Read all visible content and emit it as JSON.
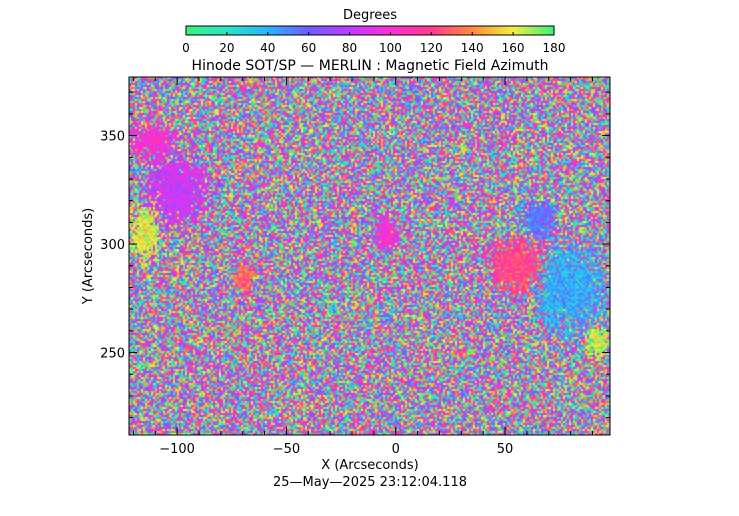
{
  "chart_data": {
    "type": "heatmap",
    "title": "Hinode SOT/SP — MERLIN : Magnetic Field Azimuth",
    "xlabel": "X (Arcseconds)",
    "ylabel": "Y (Arcseconds)",
    "xlim": [
      -122,
      98
    ],
    "ylim": [
      212,
      377
    ],
    "x_ticks": [
      -100,
      -50,
      0,
      50
    ],
    "y_ticks": [
      250,
      300,
      350
    ],
    "x_tick_labels": [
      "−100",
      "−50",
      "0",
      "50"
    ],
    "y_tick_labels": [
      "250",
      "300",
      "350"
    ],
    "colorbar": {
      "label": "Degrees",
      "range": [
        0,
        180
      ],
      "ticks": [
        0,
        20,
        40,
        60,
        80,
        100,
        120,
        140,
        160,
        180
      ],
      "tick_labels": [
        "0",
        "20",
        "40",
        "60",
        "80",
        "100",
        "120",
        "140",
        "160",
        "180"
      ],
      "colors": [
        "#3CF07A",
        "#28E6C8",
        "#2AB4FF",
        "#6E5CFF",
        "#C03CFF",
        "#FF2ED6",
        "#FF3C8C",
        "#FF8A3C",
        "#F0F040",
        "#3CF07A"
      ]
    },
    "structured_regions": [
      {
        "x": -112,
        "y": 348,
        "rx": 12,
        "ry": 10,
        "azimuth": 100
      },
      {
        "x": -100,
        "y": 325,
        "rx": 16,
        "ry": 18,
        "azimuth": 85
      },
      {
        "x": -115,
        "y": 305,
        "rx": 8,
        "ry": 14,
        "azimuth": 160
      },
      {
        "x": -70,
        "y": 285,
        "rx": 6,
        "ry": 8,
        "azimuth": 130
      },
      {
        "x": -5,
        "y": 305,
        "rx": 6,
        "ry": 10,
        "azimuth": 100
      },
      {
        "x": 55,
        "y": 290,
        "rx": 15,
        "ry": 15,
        "azimuth": 120
      },
      {
        "x": 80,
        "y": 280,
        "rx": 18,
        "ry": 22,
        "azimuth": 40
      },
      {
        "x": 65,
        "y": 312,
        "rx": 8,
        "ry": 10,
        "azimuth": 55
      },
      {
        "x": 92,
        "y": 255,
        "rx": 6,
        "ry": 8,
        "azimuth": 165
      }
    ]
  },
  "timestamp": "25—May—2025 23:12:04.118"
}
